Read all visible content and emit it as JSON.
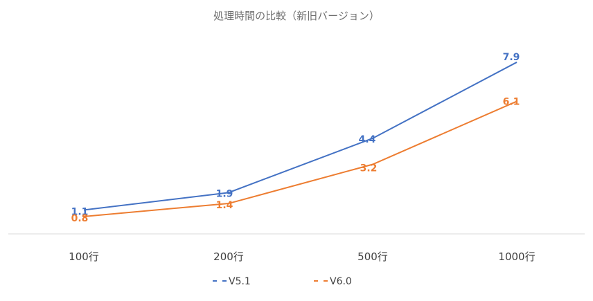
{
  "chart_data": {
    "type": "line",
    "title": "処理時間の比較（新旧バージョン）",
    "categories": [
      "100行",
      "200行",
      "500行",
      "1000行"
    ],
    "series": [
      {
        "name": "V5.1",
        "values": [
          1.1,
          1.9,
          4.4,
          7.9
        ],
        "color": "#4472c4"
      },
      {
        "name": "V6.0",
        "values": [
          0.8,
          1.4,
          3.2,
          6.1
        ],
        "color": "#ed7d31"
      }
    ],
    "xlabel": "",
    "ylabel": "",
    "ylim": [
      0,
      9
    ],
    "grid": false,
    "legend": "bottom",
    "data_labels": true,
    "axis_color": "#d9d9d9"
  }
}
